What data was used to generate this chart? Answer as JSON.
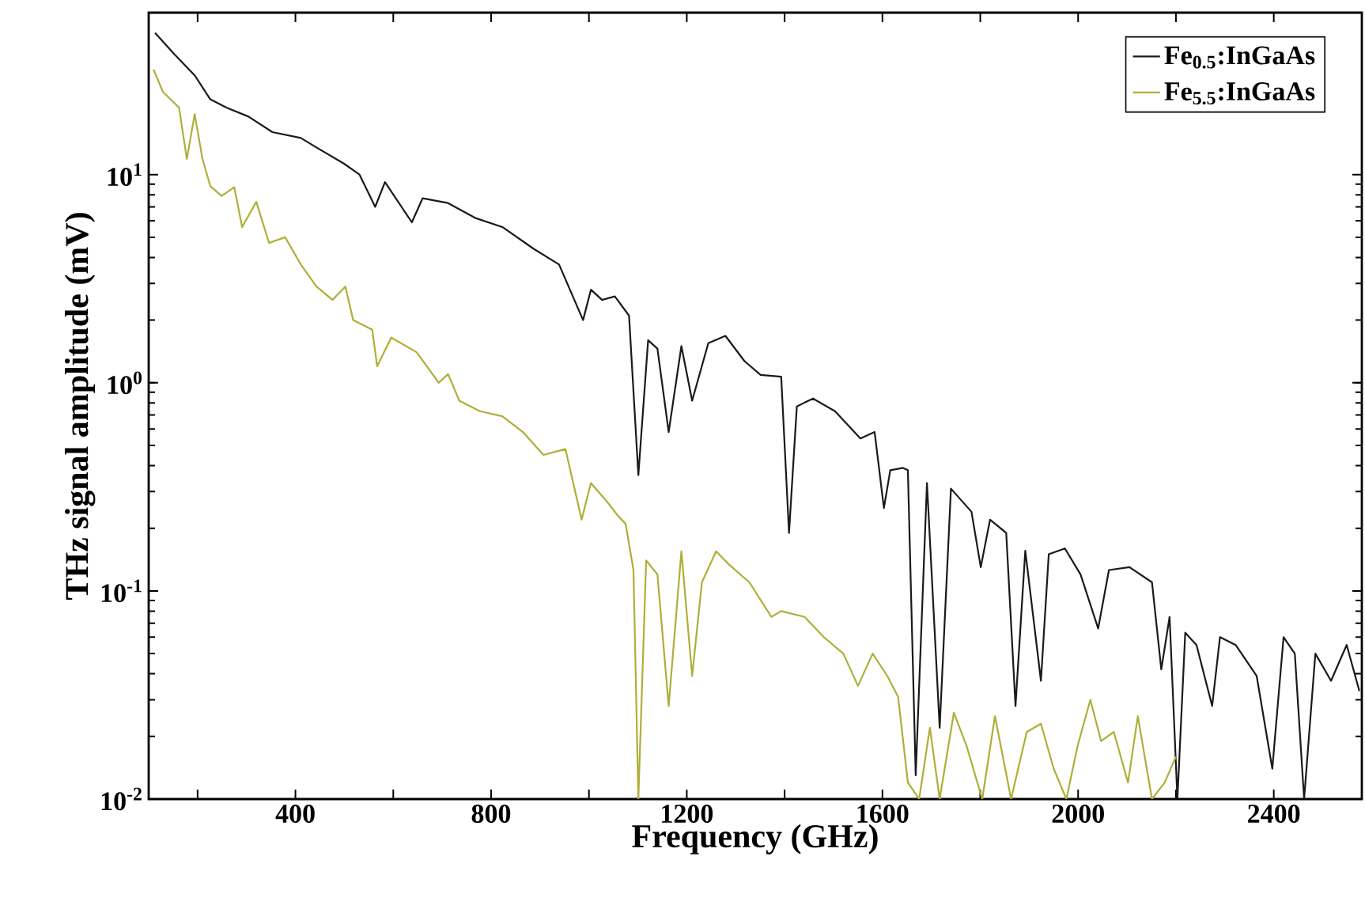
{
  "chart_data": {
    "type": "line",
    "xlabel": "Frequency (GHz)",
    "ylabel": "THz signal amplitude (mV)",
    "log": "y",
    "legend": "top right",
    "grid": false,
    "marker": "none",
    "line_style": "solid",
    "xlim": [
      100,
      2580
    ],
    "ylim": [
      0.01,
      60
    ],
    "xticks": [
      {
        "value": 200,
        "label": null
      },
      400,
      {
        "value": 600,
        "label": null
      },
      800,
      {
        "value": 1000,
        "label": null
      },
      1200,
      {
        "value": 1400,
        "label": null
      },
      1600,
      {
        "value": 1800,
        "label": null
      },
      2000,
      {
        "value": 2200,
        "label": null
      },
      2400
    ],
    "yticks": [
      {
        "value": 0.01,
        "label": "10$^{-2}$"
      },
      {
        "value": 0.1,
        "label": "10$^{-1}$"
      },
      {
        "value": 1,
        "label": "10$^{0}$"
      },
      {
        "value": 10,
        "label": "10$^{1}$"
      }
    ],
    "series": [
      {
        "name": "Fe$_{0.5}$:InGaAs",
        "color": "#1a1a1a",
        "x": [
          113,
          152,
          194,
          226,
          259,
          304,
          353,
          411,
          443,
          499,
          531,
          563,
          583,
          638,
          660,
          712,
          767,
          823,
          887,
          939,
          988,
          1004,
          1027,
          1053,
          1082,
          1101,
          1121,
          1140,
          1163,
          1189,
          1211,
          1244,
          1279,
          1318,
          1351,
          1393,
          1409,
          1425,
          1458,
          1503,
          1555,
          1584,
          1603,
          1616,
          1642,
          1652,
          1668,
          1691,
          1717,
          1740,
          1782,
          1801,
          1820,
          1853,
          1872,
          1892,
          1924,
          1940,
          1973,
          2005,
          2041,
          2063,
          2105,
          2151,
          2170,
          2187,
          2203,
          2219,
          2242,
          2274,
          2290,
          2322,
          2365,
          2397,
          2420,
          2443,
          2462,
          2485,
          2517,
          2549,
          2575
        ],
        "values": [
          48,
          38,
          30,
          23,
          21,
          19,
          16,
          15,
          13.5,
          11.3,
          10,
          7.0,
          9.2,
          5.9,
          7.7,
          7.3,
          6.2,
          5.6,
          4.4,
          3.7,
          2.0,
          2.8,
          2.5,
          2.6,
          2.1,
          0.36,
          1.6,
          1.46,
          0.58,
          1.5,
          0.82,
          1.55,
          1.68,
          1.27,
          1.09,
          1.07,
          0.19,
          0.77,
          0.84,
          0.73,
          0.54,
          0.58,
          0.25,
          0.38,
          0.39,
          0.38,
          0.013,
          0.33,
          0.022,
          0.31,
          0.24,
          0.13,
          0.22,
          0.19,
          0.028,
          0.156,
          0.037,
          0.15,
          0.16,
          0.12,
          0.066,
          0.126,
          0.13,
          0.11,
          0.042,
          0.075,
          0.01,
          0.063,
          0.055,
          0.028,
          0.06,
          0.055,
          0.039,
          0.014,
          0.06,
          0.05,
          0.01,
          0.05,
          0.037,
          0.055,
          0.033
        ]
      },
      {
        "name": "Fe$_{5.5}$:InGaAs",
        "color": "#b0ae38",
        "x": [
          110,
          129,
          162,
          178,
          194,
          210,
          226,
          249,
          275,
          291,
          320,
          346,
          379,
          411,
          443,
          476,
          502,
          518,
          557,
          567,
          596,
          648,
          693,
          712,
          735,
          777,
          823,
          865,
          907,
          952,
          985,
          1004,
          1036,
          1059,
          1075,
          1091,
          1101,
          1117,
          1140,
          1163,
          1189,
          1211,
          1231,
          1260,
          1286,
          1328,
          1373,
          1393,
          1441,
          1480,
          1520,
          1550,
          1580,
          1610,
          1632,
          1652,
          1675,
          1697,
          1717,
          1746,
          1772,
          1804,
          1830,
          1863,
          1895,
          1924,
          1950,
          1976,
          1999,
          2025,
          2047,
          2073,
          2102,
          2122,
          2151,
          2177,
          2200
        ],
        "values": [
          32,
          25,
          21,
          11.9,
          19.5,
          11.9,
          8.8,
          7.9,
          8.7,
          5.6,
          7.4,
          4.7,
          5.0,
          3.7,
          2.9,
          2.5,
          2.9,
          2.0,
          1.8,
          1.2,
          1.65,
          1.4,
          1.0,
          1.1,
          0.82,
          0.73,
          0.69,
          0.58,
          0.45,
          0.48,
          0.22,
          0.33,
          0.27,
          0.23,
          0.21,
          0.126,
          0.01,
          0.14,
          0.12,
          0.028,
          0.155,
          0.039,
          0.11,
          0.155,
          0.134,
          0.11,
          0.075,
          0.08,
          0.075,
          0.06,
          0.05,
          0.035,
          0.05,
          0.039,
          0.031,
          0.012,
          0.01,
          0.022,
          0.01,
          0.026,
          0.018,
          0.01,
          0.025,
          0.01,
          0.021,
          0.023,
          0.014,
          0.01,
          0.018,
          0.03,
          0.019,
          0.021,
          0.012,
          0.025,
          0.01,
          0.012,
          0.016
        ]
      }
    ]
  }
}
